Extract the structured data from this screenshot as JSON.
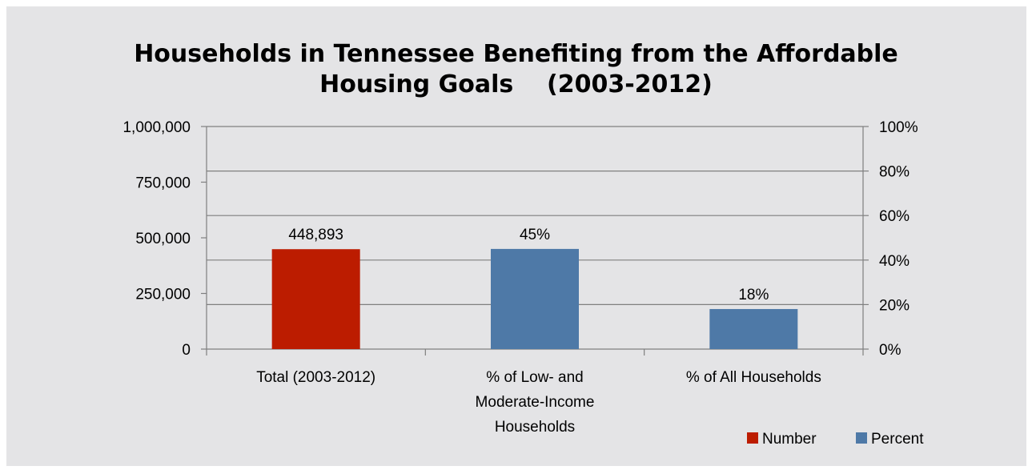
{
  "chart_data": {
    "type": "bar",
    "title_lines": [
      "Households in Tennessee Benefiting from the Affordable",
      "Housing Goals    (2003-2012)"
    ],
    "categories": [
      [
        "Total (2003-2012)"
      ],
      [
        "% of Low- and",
        "Moderate-Income",
        "Households"
      ],
      [
        "% of All Households"
      ]
    ],
    "bars": [
      {
        "series": "Number",
        "axis": "left",
        "value": 448893,
        "label": "448,893"
      },
      {
        "series": "Percent",
        "axis": "right",
        "value": 45,
        "label": "45%"
      },
      {
        "series": "Percent",
        "axis": "right",
        "value": 18,
        "label": "18%"
      }
    ],
    "left_axis": {
      "min": 0,
      "max": 1000000,
      "ticks": [
        0,
        250000,
        500000,
        750000,
        1000000
      ],
      "tick_labels": [
        "0",
        "250,000",
        "500,000",
        "750,000",
        "1,000,000"
      ]
    },
    "right_axis": {
      "min": 0,
      "max": 100,
      "ticks": [
        0,
        20,
        40,
        60,
        80,
        100
      ],
      "tick_labels": [
        "0%",
        "20%",
        "40%",
        "60%",
        "80%",
        "100%"
      ]
    },
    "gridlines": true,
    "legend": {
      "placement": "bottom-right",
      "items": [
        {
          "name": "Number",
          "color": "#BC1C00"
        },
        {
          "name": "Percent",
          "color": "#4E79A7"
        }
      ]
    },
    "colors": {
      "Number": "#BC1C00",
      "Percent": "#4E79A7",
      "background": "#E4E4E6",
      "grid": "#7F7F7F"
    }
  }
}
